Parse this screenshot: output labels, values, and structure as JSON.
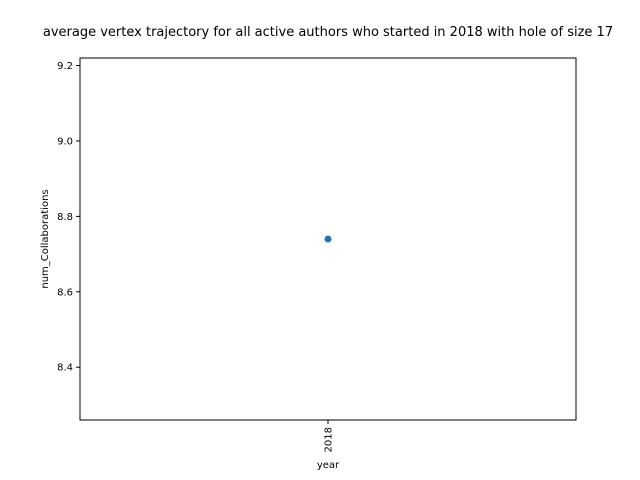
{
  "chart_data": {
    "type": "scatter",
    "title": "average vertex trajectory for all active authors who started in 2018 with hole of size 17",
    "xlabel": "year",
    "ylabel": "num_Collaborations",
    "x_categories": [
      "2018"
    ],
    "points": [
      {
        "x": "2018",
        "y": 8.74
      }
    ],
    "ylim": [
      8.26,
      9.22
    ],
    "yticks": [
      8.4,
      8.6,
      8.8,
      9.0,
      9.2
    ],
    "grid": false,
    "legend": "none",
    "colors": {
      "marker": "#1f77b4",
      "axes": "#000000"
    }
  }
}
